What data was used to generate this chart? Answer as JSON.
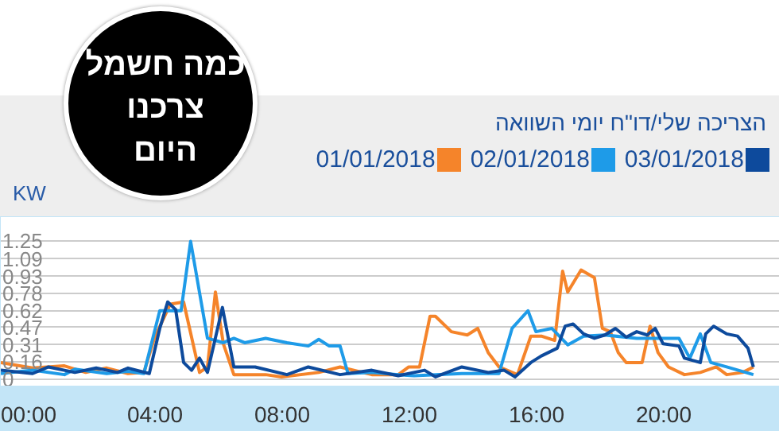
{
  "chart_data": {
    "type": "line",
    "title": "הצריכה שלי/דו\"ח יומי השוואה",
    "ylabel": "KW",
    "annotations": [
      "כמה חשמל\nצרכנו\nהיום"
    ],
    "legend": "top right",
    "grid": "y",
    "marker": "none",
    "line_style": "solid",
    "xlim": [
      -0.85,
      23.65
    ],
    "ylim": [
      -0.06,
      1.47
    ],
    "xticks": [
      {
        "value": 0,
        "label": "00:00"
      },
      {
        "value": 4,
        "label": "04:00"
      },
      {
        "value": 8,
        "label": "08:00"
      },
      {
        "value": 12,
        "label": "12:00"
      },
      {
        "value": 16,
        "label": "16:00"
      },
      {
        "value": 20,
        "label": "20:00"
      }
    ],
    "yticks": [
      0,
      0.16,
      0.31,
      0.47,
      0.62,
      0.78,
      0.93,
      1.09,
      1.25
    ],
    "series": [
      {
        "name": "01/01/2018",
        "color": "#f5842a",
        "x": [
          -0.85,
          0.15,
          1.15,
          1.82,
          2.48,
          3.15,
          3.65,
          3.98,
          4.48,
          4.9,
          5.4,
          5.65,
          5.9,
          6.15,
          6.48,
          7.48,
          7.98,
          9.15,
          9.82,
          10.82,
          11.65,
          11.98,
          12.32,
          12.65,
          12.82,
          13.32,
          13.82,
          14.15,
          14.48,
          14.82,
          15.4,
          15.82,
          16.15,
          16.57,
          16.82,
          16.98,
          17.4,
          17.82,
          18.07,
          18.32,
          18.57,
          18.82,
          19.32,
          19.57,
          19.82,
          20.15,
          20.65,
          21.15,
          21.65,
          21.98,
          22.48,
          22.82
        ],
        "values": [
          0.15,
          0.1,
          0.12,
          0.06,
          0.1,
          0.05,
          0.06,
          0.37,
          0.68,
          0.7,
          0.06,
          0.11,
          0.79,
          0.32,
          0.04,
          0.04,
          0.02,
          0.06,
          0.11,
          0.04,
          0.04,
          0.11,
          0.11,
          0.57,
          0.57,
          0.43,
          0.4,
          0.46,
          0.24,
          0.11,
          0.04,
          0.39,
          0.39,
          0.35,
          0.98,
          0.79,
          0.99,
          0.92,
          0.46,
          0.43,
          0.24,
          0.15,
          0.15,
          0.48,
          0.24,
          0.11,
          0.04,
          0.06,
          0.11,
          0.04,
          0.06,
          0.11
        ]
      },
      {
        "name": "02/01/2018",
        "color": "#1e9be8",
        "x": [
          -0.85,
          0.15,
          1.15,
          1.48,
          2.48,
          3.15,
          3.65,
          4.15,
          4.82,
          5.12,
          5.65,
          6.15,
          6.48,
          6.82,
          7.48,
          8.15,
          8.82,
          9.15,
          9.48,
          9.82,
          10.07,
          10.82,
          11.65,
          12.15,
          13.65,
          14.82,
          15.23,
          15.73,
          15.98,
          16.48,
          16.98,
          17.48,
          18.15,
          19.15,
          20.48,
          20.82,
          21.15,
          21.48,
          21.98,
          22.82
        ],
        "values": [
          0.05,
          0.08,
          0.04,
          0.09,
          0.05,
          0.07,
          0.05,
          0.62,
          0.62,
          1.25,
          0.37,
          0.33,
          0.37,
          0.33,
          0.37,
          0.33,
          0.3,
          0.36,
          0.3,
          0.3,
          0.05,
          0.06,
          0.04,
          0.03,
          0.05,
          0.05,
          0.46,
          0.62,
          0.43,
          0.46,
          0.31,
          0.39,
          0.4,
          0.37,
          0.37,
          0.19,
          0.41,
          0.15,
          0.11,
          0.04
        ]
      },
      {
        "name": "03/01/2018",
        "color": "#0d4a9c",
        "x": [
          -0.85,
          0.15,
          0.65,
          1.48,
          2.15,
          2.82,
          3.15,
          3.82,
          4.15,
          4.4,
          4.65,
          4.9,
          5.15,
          5.4,
          5.65,
          6.12,
          6.48,
          7.15,
          8.15,
          8.82,
          9.82,
          10.82,
          11.65,
          12.48,
          12.82,
          13.65,
          14.48,
          14.98,
          15.32,
          15.82,
          16.15,
          16.65,
          16.9,
          17.15,
          17.48,
          17.82,
          18.15,
          18.48,
          18.82,
          19.15,
          19.48,
          19.73,
          19.98,
          20.48,
          20.65,
          21.15,
          21.32,
          21.57,
          21.98,
          22.32,
          22.65,
          22.82
        ],
        "values": [
          0.08,
          0.05,
          0.11,
          0.06,
          0.1,
          0.06,
          0.1,
          0.05,
          0.46,
          0.7,
          0.63,
          0.15,
          0.08,
          0.19,
          0.06,
          0.65,
          0.11,
          0.11,
          0.04,
          0.11,
          0.04,
          0.08,
          0.03,
          0.08,
          0.02,
          0.11,
          0.06,
          0.08,
          0.02,
          0.15,
          0.21,
          0.28,
          0.48,
          0.5,
          0.41,
          0.37,
          0.4,
          0.46,
          0.38,
          0.43,
          0.4,
          0.46,
          0.32,
          0.3,
          0.19,
          0.15,
          0.41,
          0.48,
          0.41,
          0.39,
          0.28,
          0.11
        ]
      }
    ]
  }
}
